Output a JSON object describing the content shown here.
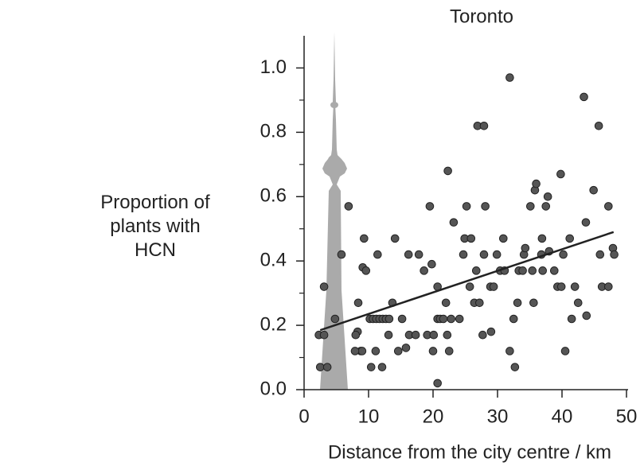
{
  "chart_data": {
    "type": "scatter",
    "title": "Toronto",
    "x_label": "Distance from the city centre / km",
    "y_label": "Proportion of plants with HCN",
    "xlim": [
      0,
      50
    ],
    "xticks": [
      0,
      10,
      20,
      30,
      40,
      50
    ],
    "ylim": [
      0,
      1.1
    ],
    "yticks": [
      {
        "value": 0,
        "label": "0.0"
      },
      0.2,
      0.4,
      0.6,
      0.8,
      {
        "value": 1,
        "label": "1.0"
      }
    ],
    "yminor_ticks": [
      0.1,
      0.3,
      0.5,
      0.7,
      0.9
    ],
    "color": "#555555",
    "x": [
      2.5,
      2.3,
      3.1,
      3.1,
      3.6,
      4.8,
      5.8,
      6.9,
      8.4,
      8.3,
      8.8,
      9.1,
      9.3,
      9.6,
      9.0,
      7.9,
      8.0,
      10.2,
      10.7,
      11.2,
      11.7,
      12.2,
      12.7,
      13.2,
      10.4,
      11.1,
      11.4,
      12.1,
      13.1,
      13.7,
      14.1,
      14.6,
      15.2,
      15.8,
      16.2,
      16.3,
      17.8,
      17.3,
      18.6,
      19.1,
      19.5,
      19.8,
      20.0,
      20.1,
      20.7,
      20.7,
      20.7,
      21.1,
      21.6,
      22.0,
      22.2,
      22.3,
      22.5,
      22.8,
      23.2,
      24.1,
      24.7,
      24.9,
      25.2,
      25.7,
      25.9,
      26.4,
      26.7,
      26.9,
      27.2,
      27.7,
      27.9,
      27.9,
      28.1,
      28.9,
      29.0,
      29.4,
      29.9,
      30.4,
      30.9,
      31.1,
      31.9,
      31.9,
      32.5,
      32.7,
      33.1,
      33.3,
      33.9,
      34.1,
      34.3,
      35.1,
      35.4,
      35.6,
      35.8,
      36.0,
      36.8,
      36.9,
      37.0,
      37.5,
      37.8,
      38.0,
      38.8,
      39.3,
      39.8,
      39.9,
      40.2,
      40.5,
      41.2,
      41.5,
      42.0,
      42.5,
      43.4,
      43.7,
      43.8,
      44.9,
      45.7,
      45.9,
      46.2,
      47.2,
      47.2,
      47.9,
      48.1
    ],
    "values": [
      0.07,
      0.17,
      0.17,
      0.32,
      0.07,
      0.22,
      0.42,
      0.57,
      0.27,
      0.18,
      0.12,
      0.38,
      0.47,
      0.37,
      0.12,
      0.12,
      0.17,
      0.22,
      0.22,
      0.22,
      0.22,
      0.22,
      0.22,
      0.22,
      0.07,
      0.12,
      0.42,
      0.07,
      0.17,
      0.27,
      0.47,
      0.12,
      0.22,
      0.13,
      0.42,
      0.17,
      0.42,
      0.17,
      0.37,
      0.17,
      0.57,
      0.39,
      0.12,
      0.17,
      0.22,
      0.32,
      0.02,
      0.22,
      0.22,
      0.27,
      0.17,
      0.68,
      0.12,
      0.22,
      0.52,
      0.22,
      0.42,
      0.47,
      0.57,
      0.32,
      0.47,
      0.27,
      0.37,
      0.82,
      0.27,
      0.17,
      0.82,
      0.42,
      0.57,
      0.32,
      0.18,
      0.32,
      0.42,
      0.37,
      0.47,
      0.37,
      0.97,
      0.12,
      0.22,
      0.07,
      0.27,
      0.37,
      0.37,
      0.42,
      0.44,
      0.57,
      0.37,
      0.27,
      0.62,
      0.64,
      0.42,
      0.47,
      0.37,
      0.57,
      0.6,
      0.43,
      0.37,
      0.32,
      0.67,
      0.32,
      0.42,
      0.12,
      0.47,
      0.22,
      0.32,
      0.27,
      0.91,
      0.52,
      0.23,
      0.62,
      0.82,
      0.42,
      0.32,
      0.32,
      0.57,
      0.44,
      0.42
    ],
    "trend": {
      "x": [
        2.5,
        48
      ],
      "y": [
        0.185,
        0.49
      ],
      "color": "#222222"
    }
  }
}
